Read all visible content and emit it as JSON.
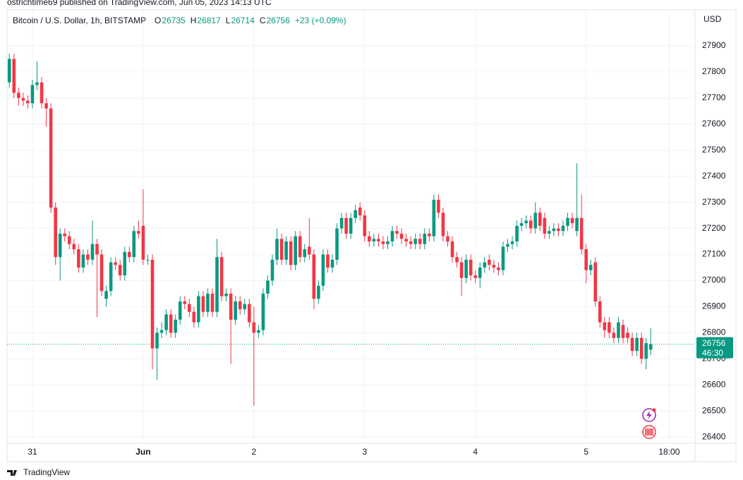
{
  "header": {
    "publisher": "ostrichtime69 published on TradingView.com, Jun 05, 2023 14:13 UTC",
    "brand": "TradingView"
  },
  "chart_data": {
    "type": "candlestick",
    "title": "Bitcoin / U.S. Dollar, 1h, BITSTAMP",
    "ohlc_labels": [
      "O",
      "H",
      "L",
      "C"
    ],
    "change": "+23 (+0.09%)",
    "countdown": "46:30",
    "currency": "USD",
    "up_color": "#089981",
    "down_color": "#f23645",
    "grid": true,
    "xlim": [
      -0.5,
      148.6
    ],
    "ylim": [
      26376,
      28038
    ],
    "xticks": [
      {
        "value": 5,
        "label": "31"
      },
      {
        "value": 29,
        "label": "Jun"
      },
      {
        "value": 53,
        "label": "2"
      },
      {
        "value": 77,
        "label": "3"
      },
      {
        "value": 101,
        "label": "4"
      },
      {
        "value": 125,
        "label": "5"
      },
      {
        "value": 143,
        "label": "18:00"
      }
    ],
    "yticks": [
      26400,
      26500,
      26600,
      26700,
      26800,
      26900,
      27000,
      27100,
      27200,
      27300,
      27400,
      27500,
      27600,
      27700,
      27800,
      27900
    ],
    "open": [
      27760,
      27850,
      27720,
      27700,
      27690,
      27680,
      27750,
      27760,
      27680,
      27660,
      27280,
      27090,
      27180,
      27170,
      27140,
      27120,
      27050,
      27100,
      27080,
      27140,
      27100,
      26930,
      26960,
      27070,
      27060,
      27020,
      27110,
      27090,
      27190,
      27210,
      27080,
      27080,
      26740,
      26800,
      26810,
      26870,
      26800,
      26850,
      26920,
      26910,
      26880,
      26840,
      26940,
      26880,
      26950,
      26880,
      27090,
      26940,
      26950,
      26850,
      26920,
      26890,
      26910,
      26840,
      26800,
      26810,
      26950,
      27000,
      27080,
      27160,
      27080,
      27150,
      27060,
      27170,
      27090,
      27130,
      27100,
      26930,
      26980,
      27100,
      27050,
      27080,
      27200,
      27240,
      27180,
      27240,
      27280,
      27250,
      27170,
      27150,
      27160,
      27150,
      27140,
      27150,
      27190,
      27180,
      27160,
      27150,
      27140,
      27160,
      27140,
      27180,
      27170,
      27310,
      27260,
      27170,
      27150,
      27090,
      27070,
      27010,
      27080,
      27020,
      27010,
      27050,
      27080,
      27060,
      27050,
      27040,
      27130,
      27140,
      27150,
      27210,
      27220,
      27230,
      27200,
      27260,
      27240,
      27180,
      27190,
      27200,
      27190,
      27210,
      27240,
      27190,
      27240,
      27120,
      27040,
      27070,
      26920,
      26840,
      26840,
      26800,
      26780,
      26830,
      26800,
      26780,
      26730,
      26780,
      26700,
      26735
    ],
    "high": [
      27870,
      27870,
      27740,
      27720,
      27710,
      27770,
      27840,
      27780,
      27700,
      27680,
      27300,
      27200,
      27200,
      27190,
      27160,
      27140,
      27120,
      27120,
      27230,
      27160,
      27120,
      26980,
      27090,
      27090,
      27080,
      27130,
      27130,
      27210,
      27230,
      27350,
      27100,
      27100,
      26820,
      26840,
      26890,
      26890,
      26870,
      26940,
      26940,
      26930,
      26900,
      26960,
      26960,
      26970,
      26970,
      27160,
      27110,
      26970,
      26970,
      26940,
      26940,
      26930,
      26930,
      26900,
      26830,
      26970,
      27020,
      27100,
      27200,
      27180,
      27170,
      27170,
      27190,
      27190,
      27140,
      27240,
      27120,
      27000,
      27120,
      27120,
      27100,
      27220,
      27260,
      27260,
      27260,
      27290,
      27300,
      27270,
      27190,
      27180,
      27180,
      27170,
      27170,
      27210,
      27210,
      27200,
      27180,
      27170,
      27180,
      27180,
      27200,
      27200,
      27330,
      27330,
      27280,
      27190,
      27170,
      27110,
      27090,
      27100,
      27100,
      27040,
      27070,
      27090,
      27100,
      27080,
      27070,
      27150,
      27160,
      27170,
      27230,
      27240,
      27250,
      27250,
      27300,
      27280,
      27260,
      27210,
      27220,
      27220,
      27230,
      27260,
      27260,
      27450,
      27330,
      27140,
      27080,
      27090,
      26940,
      26860,
      26860,
      26820,
      26860,
      26850,
      26820,
      26800,
      26800,
      26800,
      26780,
      26817
    ],
    "low": [
      27740,
      27700,
      27670,
      27670,
      27660,
      27660,
      27730,
      27660,
      27590,
      27260,
      27060,
      27000,
      27150,
      27120,
      27100,
      27030,
      27030,
      27060,
      27060,
      26860,
      26940,
      26900,
      26940,
      27040,
      27000,
      27000,
      27070,
      27070,
      27160,
      27060,
      27060,
      26660,
      26620,
      26780,
      26790,
      26780,
      26780,
      26830,
      26890,
      26860,
      26820,
      26820,
      26860,
      26860,
      26860,
      26860,
      26920,
      26920,
      26680,
      26830,
      26870,
      26870,
      26820,
      26520,
      26780,
      26790,
      26930,
      26980,
      27060,
      27060,
      27060,
      27040,
      27040,
      27070,
      27070,
      27080,
      26890,
      26910,
      26960,
      27030,
      27030,
      27060,
      27180,
      27160,
      27160,
      27220,
      27230,
      27150,
      27130,
      27130,
      27130,
      27120,
      27120,
      27130,
      27160,
      27140,
      27130,
      27120,
      27120,
      27120,
      27120,
      27150,
      27150,
      27240,
      27150,
      27130,
      27070,
      27050,
      26940,
      26990,
      27000,
      26990,
      26970,
      27030,
      27040,
      27030,
      27020,
      27020,
      27110,
      27120,
      27130,
      27190,
      27200,
      27180,
      27180,
      27190,
      27160,
      27160,
      27170,
      27170,
      27170,
      27190,
      27200,
      27170,
      27100,
      26990,
      27020,
      26900,
      26820,
      26780,
      26780,
      26760,
      26760,
      26760,
      26760,
      26710,
      26710,
      26680,
      26660,
      26714
    ],
    "close": [
      27850,
      27720,
      27700,
      27690,
      27680,
      27750,
      27760,
      27680,
      27660,
      27280,
      27090,
      27180,
      27170,
      27140,
      27120,
      27050,
      27100,
      27080,
      27140,
      27100,
      26960,
      26960,
      27070,
      27060,
      27020,
      27110,
      27090,
      27190,
      27180,
      27080,
      27080,
      26740,
      26800,
      26810,
      26870,
      26800,
      26850,
      26920,
      26910,
      26880,
      26840,
      26940,
      26880,
      26950,
      26880,
      27090,
      26940,
      26950,
      26850,
      26920,
      26890,
      26910,
      26840,
      26800,
      26810,
      26950,
      27000,
      27080,
      27160,
      27080,
      27150,
      27060,
      27170,
      27090,
      27120,
      27100,
      26930,
      26980,
      27100,
      27050,
      27080,
      27200,
      27240,
      27180,
      27240,
      27270,
      27250,
      27170,
      27150,
      27160,
      27150,
      27140,
      27150,
      27190,
      27180,
      27160,
      27150,
      27140,
      27160,
      27140,
      27180,
      27170,
      27310,
      27260,
      27170,
      27150,
      27090,
      27070,
      27010,
      27080,
      27020,
      27010,
      27050,
      27070,
      27060,
      27050,
      27040,
      27130,
      27140,
      27150,
      27210,
      27220,
      27230,
      27200,
      27260,
      27210,
      27180,
      27190,
      27200,
      27190,
      27210,
      27240,
      27220,
      27240,
      27120,
      27040,
      27060,
      26920,
      26840,
      26810,
      26800,
      26780,
      26840,
      26780,
      26780,
      26730,
      26780,
      26700,
      26760,
      26756
    ]
  }
}
